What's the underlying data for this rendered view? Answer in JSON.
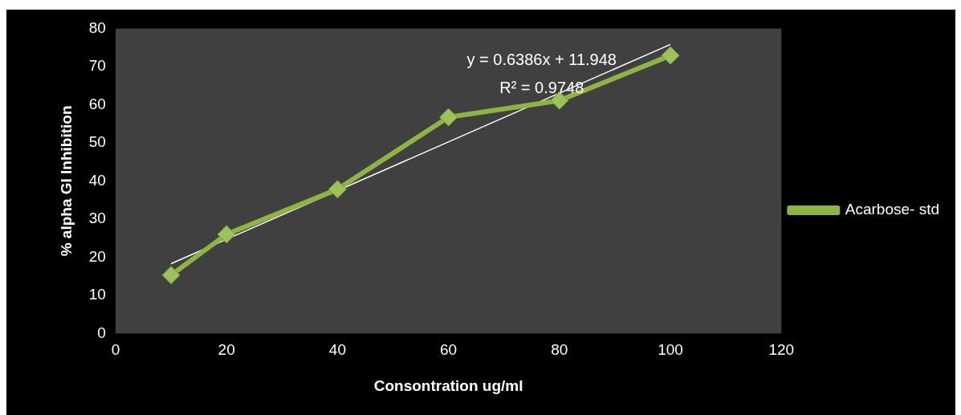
{
  "chart_data": {
    "type": "line",
    "xlabel": "Consontration ug/ml",
    "ylabel": "% alpha GI Inhibition",
    "xlim": [
      0,
      120
    ],
    "xticks": [
      0,
      20,
      40,
      60,
      80,
      100,
      120
    ],
    "ylim": [
      0,
      80
    ],
    "yticks": [
      0,
      10,
      20,
      30,
      40,
      50,
      60,
      70,
      80
    ],
    "grid": false,
    "legend": "right",
    "marker": "diamond",
    "line_style": "solid",
    "series": [
      {
        "name": "Acarbose- std",
        "color": "#8db544",
        "x": [
          10,
          20,
          40,
          60,
          80,
          100
        ],
        "values": [
          15.3,
          26,
          37.8,
          56.7,
          61.1,
          72.9
        ]
      },
      {
        "type": "line",
        "color": "#ffffff",
        "marker": "none",
        "x": [
          10,
          100
        ],
        "values": [
          18.3,
          75.8
        ]
      }
    ],
    "annotations": [
      "y = 0.6386x + 11.948",
      "R² = 0.9748"
    ]
  }
}
